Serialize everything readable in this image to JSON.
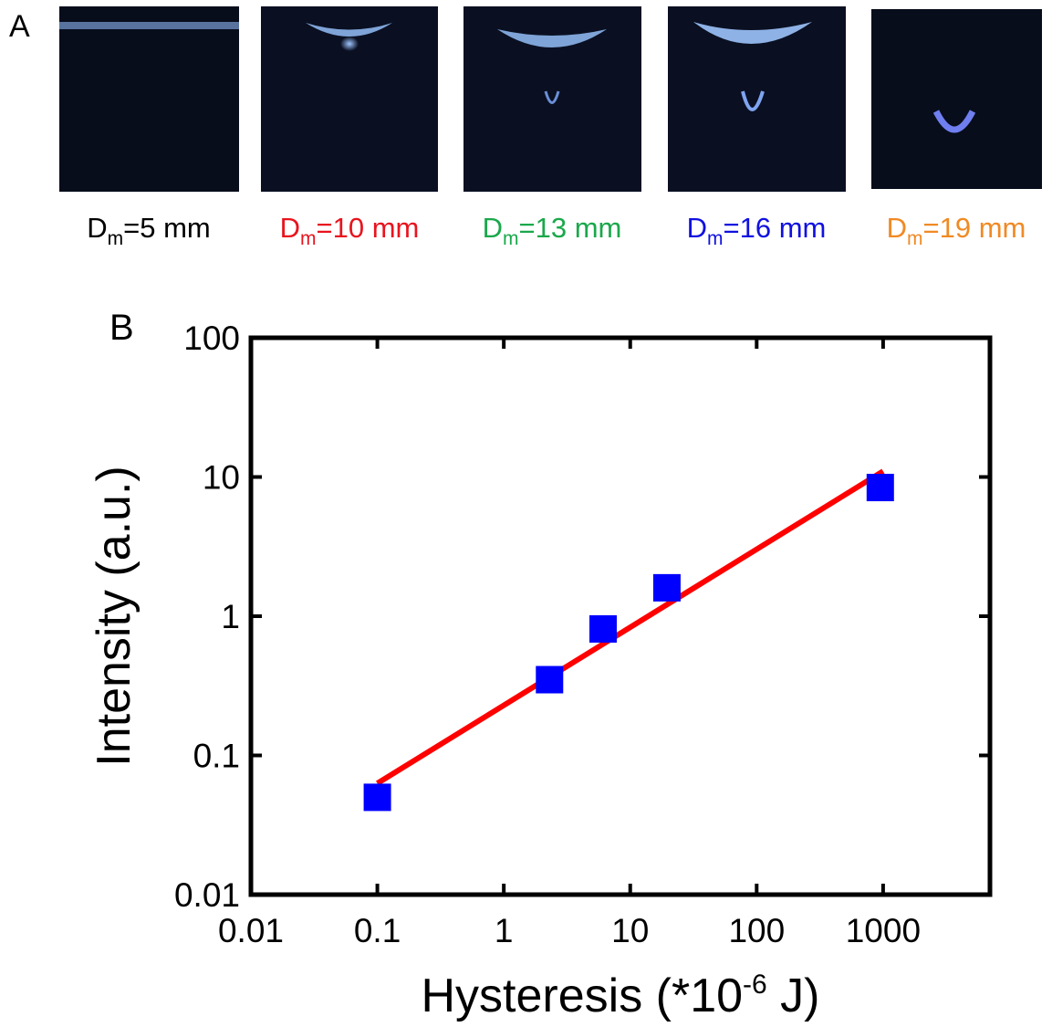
{
  "panel_a": {
    "letter": "A",
    "labels": [
      {
        "base": "D",
        "sub": "m",
        "rest": "=5 mm",
        "color": "#000000"
      },
      {
        "base": "D",
        "sub": "m",
        "rest": "=10 mm",
        "color": "#e8141e"
      },
      {
        "base": "D",
        "sub": "m",
        "rest": "=13 mm",
        "color": "#1aa84b"
      },
      {
        "base": "D",
        "sub": "m",
        "rest": "=16 mm",
        "color": "#1010e0"
      },
      {
        "base": "D",
        "sub": "m",
        "rest": "=19 mm",
        "color": "#f08a24"
      }
    ]
  },
  "chart_data": {
    "type": "scatter",
    "panel_letter": "B",
    "x_label": {
      "text": "Hysteresis (*10",
      "sup": "-6",
      "tail": " J)"
    },
    "y_label": "Intensity (a.u.)",
    "x_log": true,
    "y_log": true,
    "xlim": [
      0.01,
      7000
    ],
    "ylim": [
      0.01,
      100
    ],
    "xticks": [
      0.01,
      0.1,
      1,
      10,
      100,
      1000
    ],
    "yticks": [
      0.01,
      0.1,
      1,
      10,
      100
    ],
    "series": [
      {
        "color": "#0000ff",
        "x": [
          0.1,
          2.3,
          6.1,
          19.5,
          950
        ],
        "values": [
          0.05,
          0.35,
          0.81,
          1.6,
          8.4
        ]
      }
    ],
    "fit": {
      "color": "#ff0000",
      "x": [
        0.1,
        1000
      ],
      "values": [
        0.063,
        11
      ]
    }
  }
}
